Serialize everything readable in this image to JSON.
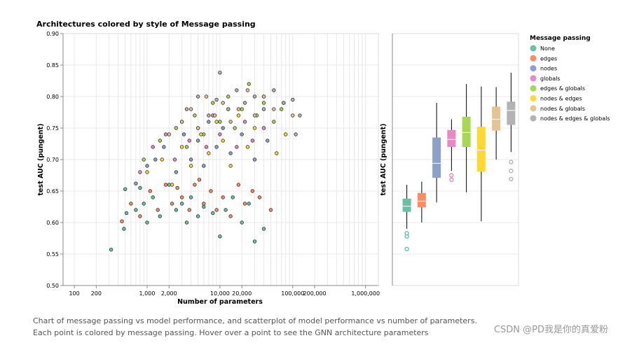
{
  "chart_data": [
    {
      "type": "scatter",
      "title": "Architectures colored by style of Message passing",
      "xlabel": "Number of parameters",
      "ylabel": "test AUC (pungent)",
      "xscale": "log",
      "xlim": [
        70,
        1500000
      ],
      "ylim": [
        0.5,
        0.9
      ],
      "xticks": [
        100,
        200,
        1000,
        2000,
        10000,
        20000,
        100000,
        200000,
        1000000
      ],
      "xtick_labels": [
        "100",
        "200",
        "1,000",
        "2,000",
        "10,000",
        "20,000",
        "100,000",
        "200,000",
        "1,000,000"
      ],
      "yticks": [
        0.5,
        0.55,
        0.6,
        0.65,
        0.7,
        0.75,
        0.8,
        0.85,
        0.9
      ],
      "ytick_labels": [
        "0.50",
        "0.55",
        "0.60",
        "0.65",
        "0.70",
        "0.75",
        "0.80",
        "0.85",
        "0.90"
      ],
      "grid": true,
      "legend": "right",
      "series": [
        {
          "name": "None",
          "points": [
            [
              320,
              0.557
            ],
            [
              480,
              0.59
            ],
            [
              520,
              0.615
            ],
            [
              700,
              0.62
            ],
            [
              900,
              0.63
            ],
            [
              1000,
              0.6
            ],
            [
              1200,
              0.64
            ],
            [
              1500,
              0.61
            ],
            [
              2000,
              0.66
            ],
            [
              2500,
              0.62
            ],
            [
              3000,
              0.63
            ],
            [
              4000,
              0.64
            ],
            [
              5000,
              0.61
            ],
            [
              6000,
              0.625
            ],
            [
              8000,
              0.615
            ],
            [
              10000,
              0.578
            ],
            [
              12000,
              0.62
            ],
            [
              15000,
              0.64
            ],
            [
              20000,
              0.6
            ],
            [
              25000,
              0.63
            ],
            [
              30000,
              0.57
            ],
            [
              40000,
              0.59
            ],
            [
              500,
              0.653
            ],
            [
              800,
              0.655
            ],
            [
              3500,
              0.6
            ]
          ]
        },
        {
          "name": "edges",
          "points": [
            [
              450,
              0.602
            ],
            [
              600,
              0.63
            ],
            [
              800,
              0.61
            ],
            [
              1100,
              0.65
            ],
            [
              1400,
              0.62
            ],
            [
              1800,
              0.66
            ],
            [
              2200,
              0.63
            ],
            [
              3000,
              0.64
            ],
            [
              3800,
              0.62
            ],
            [
              4500,
              0.66
            ],
            [
              6000,
              0.63
            ],
            [
              7500,
              0.65
            ],
            [
              9000,
              0.62
            ],
            [
              11000,
              0.64
            ],
            [
              14000,
              0.61
            ],
            [
              18000,
              0.66
            ],
            [
              22000,
              0.63
            ],
            [
              28000,
              0.65
            ],
            [
              35000,
              0.64
            ],
            [
              50000,
              0.62
            ],
            [
              2600,
              0.655
            ],
            [
              5200,
              0.668
            ]
          ]
        },
        {
          "name": "nodes",
          "points": [
            [
              700,
              0.662
            ],
            [
              1000,
              0.69
            ],
            [
              1300,
              0.7
            ],
            [
              1700,
              0.72
            ],
            [
              2500,
              0.68
            ],
            [
              3200,
              0.74
            ],
            [
              4000,
              0.7
            ],
            [
              5000,
              0.73
            ],
            [
              6000,
              0.69
            ],
            [
              7000,
              0.76
            ],
            [
              9000,
              0.72
            ],
            [
              11000,
              0.75
            ],
            [
              14000,
              0.71
            ],
            [
              20000,
              0.74
            ],
            [
              30000,
              0.7
            ],
            [
              45000,
              0.73
            ]
          ]
        },
        {
          "name": "globals",
          "points": [
            [
              800,
              0.68
            ],
            [
              1200,
              0.72
            ],
            [
              1800,
              0.74
            ],
            [
              2400,
              0.7
            ],
            [
              3000,
              0.76
            ],
            [
              3800,
              0.73
            ],
            [
              5000,
              0.75
            ],
            [
              6500,
              0.72
            ],
            [
              8000,
              0.77
            ],
            [
              10000,
              0.74
            ],
            [
              13000,
              0.78
            ],
            [
              17000,
              0.72
            ],
            [
              22000,
              0.76
            ],
            [
              28000,
              0.73
            ],
            [
              40000,
              0.75
            ]
          ]
        },
        {
          "name": "edges & globals",
          "points": [
            [
              900,
              0.7
            ],
            [
              1500,
              0.73
            ],
            [
              2500,
              0.75
            ],
            [
              3500,
              0.72
            ],
            [
              4500,
              0.77
            ],
            [
              6000,
              0.74
            ],
            [
              8000,
              0.79
            ],
            [
              10000,
              0.76
            ],
            [
              13000,
              0.8
            ],
            [
              16000,
              0.75
            ],
            [
              20000,
              0.78
            ],
            [
              25000,
              0.82
            ],
            [
              32000,
              0.77
            ],
            [
              40000,
              0.79
            ],
            [
              55000,
              0.76
            ],
            [
              70000,
              0.78
            ]
          ]
        },
        {
          "name": "nodes & edges",
          "points": [
            [
              1000,
              0.68
            ],
            [
              1600,
              0.7
            ],
            [
              2200,
              0.66
            ],
            [
              3000,
              0.72
            ],
            [
              4000,
              0.69
            ],
            [
              5500,
              0.74
            ],
            [
              7000,
              0.71
            ],
            [
              9000,
              0.76
            ],
            [
              11000,
              0.73
            ],
            [
              14000,
              0.69
            ],
            [
              18000,
              0.77
            ],
            [
              24000,
              0.72
            ],
            [
              30000,
              0.75
            ],
            [
              40000,
              0.8
            ],
            [
              60000,
              0.71
            ],
            [
              80000,
              0.74
            ]
          ]
        },
        {
          "name": "nodes & globals",
          "points": [
            [
              2000,
              0.74
            ],
            [
              3000,
              0.76
            ],
            [
              4000,
              0.78
            ],
            [
              5000,
              0.75
            ],
            [
              6500,
              0.8
            ],
            [
              8500,
              0.77
            ],
            [
              11000,
              0.79
            ],
            [
              14000,
              0.76
            ],
            [
              18000,
              0.78
            ],
            [
              24000,
              0.81
            ],
            [
              30000,
              0.77
            ],
            [
              40000,
              0.8
            ],
            [
              55000,
              0.78
            ],
            [
              75000,
              0.79
            ],
            [
              100000,
              0.77
            ]
          ]
        },
        {
          "name": "nodes & edges & globals",
          "points": [
            [
              3500,
              0.78
            ],
            [
              5000,
              0.8
            ],
            [
              7000,
              0.77
            ],
            [
              9000,
              0.795
            ],
            [
              10000,
              0.838
            ],
            [
              13000,
              0.78
            ],
            [
              17000,
              0.81
            ],
            [
              22000,
              0.79
            ],
            [
              30000,
              0.8
            ],
            [
              40000,
              0.78
            ],
            [
              55000,
              0.81
            ],
            [
              75000,
              0.79
            ],
            [
              100000,
              0.795
            ],
            [
              110000,
              0.74
            ],
            [
              125000,
              0.77
            ]
          ]
        }
      ]
    },
    {
      "type": "box",
      "ylabel": "test AUC (pungent)",
      "ylim": [
        0.5,
        0.9
      ],
      "yticks": [
        0.5,
        0.55,
        0.6,
        0.65,
        0.7,
        0.75,
        0.8,
        0.85,
        0.9
      ],
      "grid": true,
      "boxes": [
        {
          "name": "None",
          "min": 0.59,
          "q1": 0.617,
          "median": 0.626,
          "q3": 0.638,
          "max": 0.66,
          "outliers": [
            0.558,
            0.578,
            0.583
          ]
        },
        {
          "name": "edges",
          "min": 0.6,
          "q1": 0.624,
          "median": 0.634,
          "q3": 0.647,
          "max": 0.665,
          "outliers": []
        },
        {
          "name": "nodes",
          "min": 0.632,
          "q1": 0.671,
          "median": 0.694,
          "q3": 0.735,
          "max": 0.79,
          "outliers": []
        },
        {
          "name": "globals",
          "min": 0.682,
          "q1": 0.72,
          "median": 0.732,
          "q3": 0.747,
          "max": 0.764,
          "outliers": [
            0.668,
            0.675
          ]
        },
        {
          "name": "edges & globals",
          "min": 0.648,
          "q1": 0.72,
          "median": 0.743,
          "q3": 0.768,
          "max": 0.82,
          "outliers": []
        },
        {
          "name": "nodes & edges",
          "min": 0.602,
          "q1": 0.681,
          "median": 0.715,
          "q3": 0.752,
          "max": 0.816,
          "outliers": []
        },
        {
          "name": "nodes & globals",
          "min": 0.7,
          "q1": 0.746,
          "median": 0.764,
          "q3": 0.784,
          "max": 0.815,
          "outliers": []
        },
        {
          "name": "nodes & edges & globals",
          "min": 0.712,
          "q1": 0.755,
          "median": 0.778,
          "q3": 0.792,
          "max": 0.838,
          "outliers": [
            0.669,
            0.682,
            0.696
          ]
        }
      ]
    }
  ],
  "legend": {
    "title": "Message passing",
    "items": [
      {
        "label": "None",
        "color": "#66c2a5"
      },
      {
        "label": "edges",
        "color": "#fc8d62"
      },
      {
        "label": "nodes",
        "color": "#8da0cb"
      },
      {
        "label": "globals",
        "color": "#e78ac3"
      },
      {
        "label": "edges & globals",
        "color": "#a6d854"
      },
      {
        "label": "nodes & edges",
        "color": "#ffd92f"
      },
      {
        "label": "nodes & globals",
        "color": "#e5c494"
      },
      {
        "label": "nodes & edges & globals",
        "color": "#b3b3b3"
      }
    ]
  },
  "caption": "Chart of message passing vs model performance, and scatterplot of model performance vs number of parameters. Each point is colored by message passing. Hover over a point to see the GNN architecture parameters",
  "watermark": "CSDN @PD我是你的真爱粉"
}
